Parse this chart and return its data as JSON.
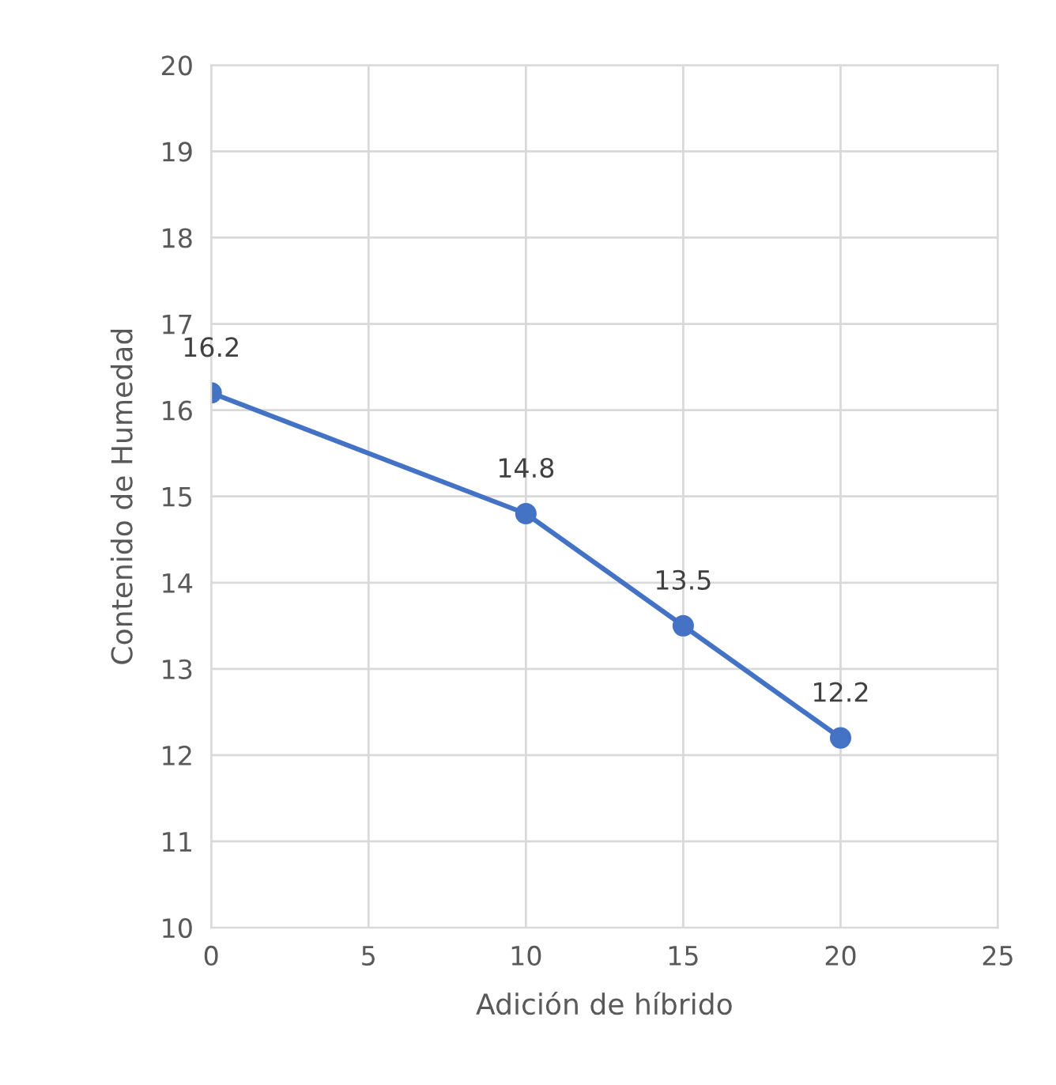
{
  "chart_data": {
    "type": "line",
    "xlabel": "Adición de híbrido",
    "ylabel": "Contenido de Humedad",
    "x": [
      0,
      10,
      15,
      20
    ],
    "series": [
      {
        "color": "#4472c4",
        "values": [
          16.2,
          14.8,
          13.5,
          12.2
        ]
      }
    ],
    "xlim": [
      0,
      25
    ],
    "xticks": [
      0,
      5,
      10,
      15,
      20,
      25
    ],
    "ylim": [
      10,
      20
    ],
    "yticks": [
      10,
      11,
      12,
      13,
      14,
      15,
      16,
      17,
      18,
      19,
      20
    ],
    "grid": true,
    "marker": "circle",
    "line_style": "solid",
    "data_labels": true,
    "legend": false
  }
}
